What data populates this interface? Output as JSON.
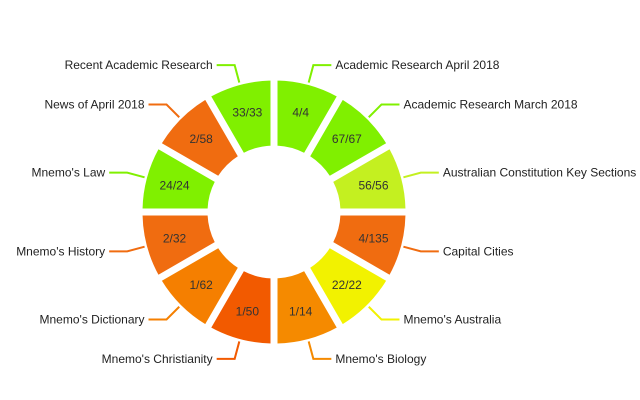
{
  "chart_data": {
    "type": "pie",
    "variant": "donut",
    "legend": "none",
    "segments": [
      {
        "category": "Academic Research April 2018",
        "label": "4/4",
        "value": 4,
        "total": 4,
        "color": "#80f000"
      },
      {
        "category": "Academic Research March 2018",
        "label": "67/67",
        "value": 67,
        "total": 67,
        "color": "#80f000"
      },
      {
        "category": "Australian Constitution Key Sections",
        "label": "56/56",
        "value": 56,
        "total": 56,
        "color": "#c4f020"
      },
      {
        "category": "Capital Cities",
        "label": "4/135",
        "value": 4,
        "total": 135,
        "color": "#f06c10"
      },
      {
        "category": "Mnemo's Australia",
        "label": "22/22",
        "value": 22,
        "total": 22,
        "color": "#f2f200"
      },
      {
        "category": "Mnemo's Biology",
        "label": "1/14",
        "value": 1,
        "total": 14,
        "color": "#f58a00"
      },
      {
        "category": "Mnemo's Christianity",
        "label": "1/50",
        "value": 1,
        "total": 50,
        "color": "#f25a00"
      },
      {
        "category": "Mnemo's Dictionary",
        "label": "1/62",
        "value": 1,
        "total": 62,
        "color": "#f57f00"
      },
      {
        "category": "Mnemo's History",
        "label": "2/32",
        "value": 2,
        "total": 32,
        "color": "#f06c10"
      },
      {
        "category": "Mnemo's Law",
        "label": "24/24",
        "value": 24,
        "total": 24,
        "color": "#80f000"
      },
      {
        "category": "News of April 2018",
        "label": "2/58",
        "value": 2,
        "total": 58,
        "color": "#f06c10"
      },
      {
        "category": "Recent Academic Research",
        "label": "33/33",
        "value": 33,
        "total": 33,
        "color": "#80f000"
      }
    ]
  }
}
